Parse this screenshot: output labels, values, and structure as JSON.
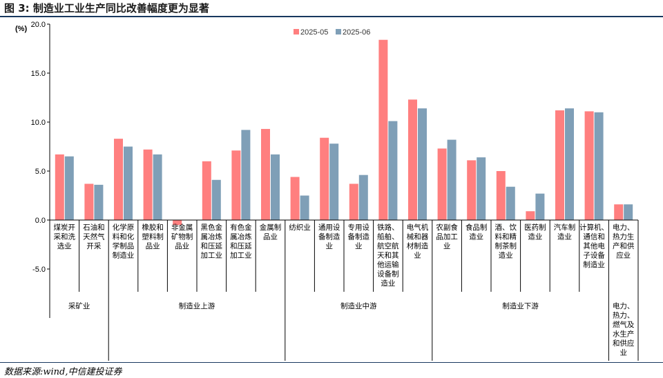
{
  "figure": {
    "title": "图 3:  制造业工业生产同比改善幅度更为显著",
    "source": "数据来源:wind,中信建投证券"
  },
  "colors": {
    "series_2025_05": "#ff7f7f",
    "series_2025_06": "#7f9fb7"
  },
  "chart_data": {
    "type": "bar",
    "ylabel": "(%)",
    "ylim": [
      -10,
      20
    ],
    "yticks": [
      "20.0",
      "15.0",
      "10.0",
      "5.0",
      "0.0",
      "-5.0"
    ],
    "ytick_values": [
      20,
      15,
      10,
      5,
      0,
      -5
    ],
    "legend_position": "top",
    "grid": false,
    "categories": [
      "煤炭开采和洗选业",
      "石油和天然气开采",
      "化学原料和化学制品制造业",
      "橡胶和塑料制品业",
      "非金属矿物制品业",
      "黑色金属冶炼和压延加工业",
      "有色金属冶炼和压延加工业",
      "金属制品业",
      "纺织业",
      "通用设备制造业",
      "专用设备制造业",
      "铁路、船舶、航空航天和其他运输设备制造业",
      "电气机械和器材制造业",
      "农副食品加工业",
      "食品制造业",
      "酒、饮料和精制茶制造业",
      "医药制造业",
      "汽车制造业",
      "计算机、通信和其他电子设备制造业",
      "电力、热力生产和供应业"
    ],
    "category_lines": [
      [
        "煤炭开",
        "采和洗",
        "选业"
      ],
      [
        "石油和",
        "天然气",
        "开采"
      ],
      [
        "化学原",
        "料和化",
        "学制品",
        "制造业"
      ],
      [
        "橡胶和",
        "塑料制",
        "品业"
      ],
      [
        "非金属",
        "矿物制",
        "品业"
      ],
      [
        "黑色金",
        "属冶炼",
        "和压延",
        "加工业"
      ],
      [
        "有色金",
        "属冶炼",
        "和压延",
        "加工业"
      ],
      [
        "金属制",
        "品业"
      ],
      [
        "纺织业"
      ],
      [
        "通用设",
        "备制造",
        "业"
      ],
      [
        "专用设",
        "备制造",
        "业"
      ],
      [
        "铁路、",
        "船舶、",
        "航空航",
        "天和其",
        "他运输",
        "设备制",
        "造业"
      ],
      [
        "电气机",
        "械和器",
        "材制造",
        "业"
      ],
      [
        "农副食",
        "品加工",
        "业"
      ],
      [
        "食品制",
        "造业"
      ],
      [
        "酒、饮",
        "料和精",
        "制茶制",
        "造业"
      ],
      [
        "医药制",
        "造业"
      ],
      [
        "汽车制",
        "造业"
      ],
      [
        "计算机、",
        "通信和",
        "其他电",
        "子设备",
        "制造业"
      ],
      [
        "电力、",
        "热力生",
        "产和供",
        "应业"
      ]
    ],
    "series": [
      {
        "name": "2025-05",
        "values": [
          6.7,
          3.7,
          8.3,
          7.2,
          -0.5,
          6.0,
          7.1,
          9.3,
          4.4,
          8.4,
          3.7,
          18.4,
          12.3,
          7.3,
          6.1,
          5.0,
          0.9,
          11.2,
          11.1,
          1.6
        ]
      },
      {
        "name": "2025-06",
        "values": [
          6.5,
          3.6,
          7.5,
          6.7,
          0.0,
          4.1,
          9.2,
          6.7,
          2.5,
          7.8,
          4.6,
          10.1,
          11.4,
          8.2,
          6.4,
          3.4,
          2.7,
          11.4,
          11.0,
          1.6
        ]
      }
    ],
    "groups": [
      {
        "label": "采矿业",
        "start": 0,
        "end": 1
      },
      {
        "label": "制造业上游",
        "start": 2,
        "end": 7
      },
      {
        "label": "制造业中游",
        "start": 8,
        "end": 12
      },
      {
        "label": "制造业下游",
        "start": 13,
        "end": 18
      },
      {
        "label": "电力、热力、燃气及水生产和供应业",
        "label_lines": [
          "电力、",
          "热力、",
          "燃气及",
          "水生产",
          "和供应",
          "业"
        ],
        "start": 19,
        "end": 19
      }
    ]
  }
}
